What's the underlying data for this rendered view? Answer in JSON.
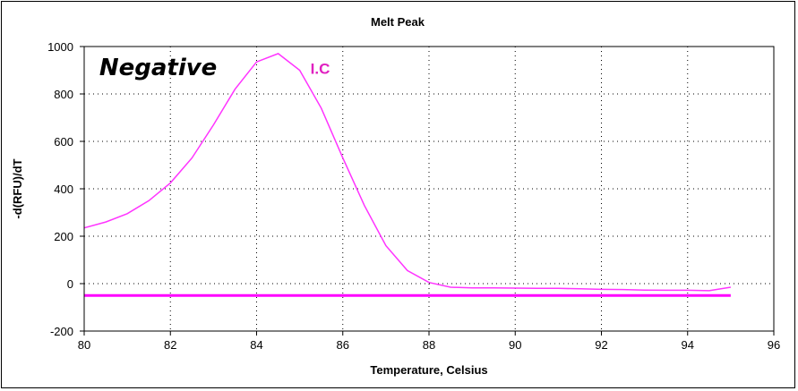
{
  "chart_data": {
    "type": "line",
    "title": "Melt Peak",
    "xlabel": "Temperature, Celsius",
    "ylabel": "-d(RFU)/dT",
    "xlim": [
      80,
      96
    ],
    "ylim": [
      -200,
      1000
    ],
    "xticks": [
      80,
      82,
      84,
      86,
      88,
      90,
      92,
      94,
      96
    ],
    "yticks": [
      -200,
      0,
      200,
      400,
      600,
      800,
      1000
    ],
    "grid": true,
    "colors": {
      "series": "#ff33ff",
      "threshold": "#ff00ff",
      "grid": "#000000"
    },
    "annotations": [
      {
        "text": "Negative",
        "x": 80.35,
        "y": 880,
        "color": "#000000"
      },
      {
        "text": "I.C",
        "x": 85.25,
        "y": 885,
        "color": "#e020c0"
      }
    ],
    "series": [
      {
        "x": [
          80,
          80.5,
          81,
          81.5,
          82,
          82.5,
          83,
          83.5,
          84,
          84.5,
          85,
          85.5,
          86,
          86.5,
          87,
          87.5,
          88,
          88.5,
          89,
          89.5,
          90,
          90.5,
          91,
          91.5,
          92,
          92.5,
          93,
          93.5,
          94,
          94.5,
          95
        ],
        "y": [
          235,
          260,
          295,
          350,
          425,
          530,
          670,
          820,
          935,
          970,
          900,
          740,
          530,
          330,
          160,
          55,
          5,
          -15,
          -18,
          -18,
          -19,
          -20,
          -20,
          -22,
          -24,
          -25,
          -27,
          -28,
          -28,
          -30,
          -15
        ]
      }
    ],
    "threshold": {
      "y": -50,
      "x": [
        80,
        95
      ]
    }
  }
}
